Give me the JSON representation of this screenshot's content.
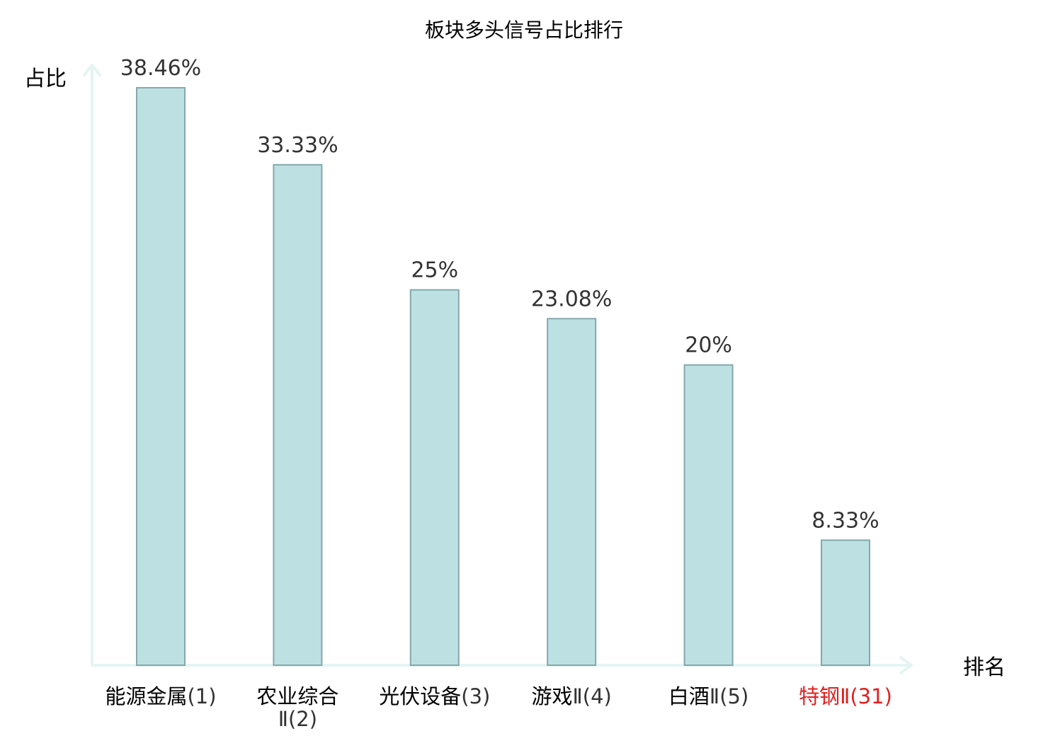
{
  "chart_data": {
    "type": "bar",
    "title": "板块多头信号占比排行",
    "ylabel": "占比",
    "xlabel": "排名",
    "ylim": [
      0,
      40
    ],
    "grid": false,
    "categories": [
      {
        "lines": [
          {
            "name": "能源金属",
            "rank": "(1)"
          }
        ],
        "highlight": false
      },
      {
        "lines": [
          {
            "name": "农业综合",
            "rank": ""
          },
          {
            "name": "",
            "rank": "Ⅱ(2)"
          }
        ],
        "highlight": false
      },
      {
        "lines": [
          {
            "name": "光伏设备",
            "rank": "(3)"
          }
        ],
        "highlight": false
      },
      {
        "lines": [
          {
            "name": "游戏",
            "rank": "Ⅱ(4)"
          }
        ],
        "highlight": false
      },
      {
        "lines": [
          {
            "name": "白酒",
            "rank": "Ⅱ(5)"
          }
        ],
        "highlight": false
      },
      {
        "lines": [
          {
            "name": "特钢",
            "rank": "Ⅱ(31)"
          }
        ],
        "highlight": true
      }
    ],
    "values": [
      38.46,
      33.33,
      25,
      23.08,
      20,
      8.33
    ],
    "value_labels": [
      "38.46%",
      "33.33%",
      "25%",
      "23.08%",
      "20%",
      "8.33%"
    ],
    "colors": {
      "bar_fill": "#bde0e3",
      "bar_stroke": "#84a8ac",
      "axis": "#e4f4f2",
      "highlight_text": "#e02020"
    }
  }
}
